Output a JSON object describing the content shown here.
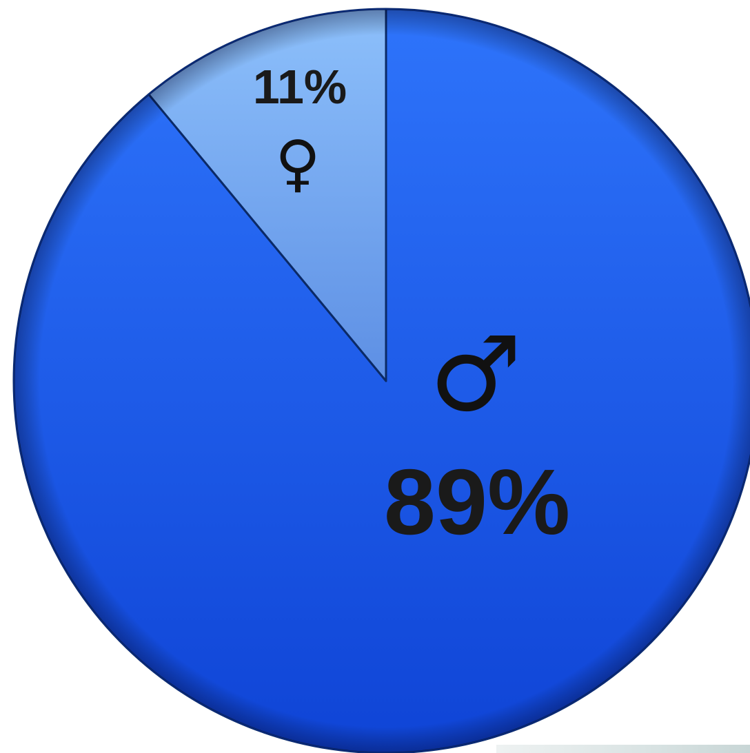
{
  "chart_data": {
    "type": "pie",
    "slices": [
      {
        "value": 89,
        "label": "89%",
        "symbol": "♂",
        "color": "#1f5ff0"
      },
      {
        "value": 11,
        "label": "11%",
        "symbol": "♀",
        "color": "#79abf4"
      }
    ],
    "start_angle_deg": 0,
    "direction": "clockwise",
    "legend": "none"
  }
}
